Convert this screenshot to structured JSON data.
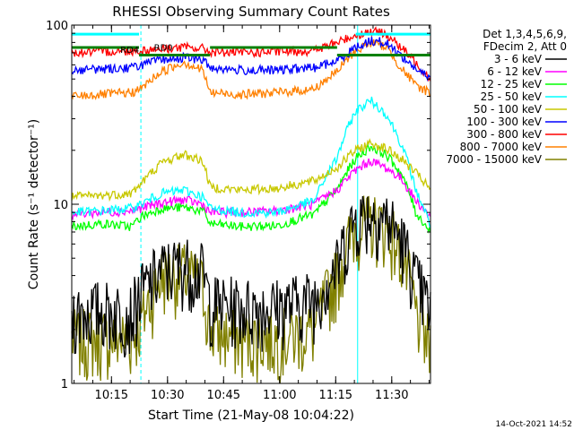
{
  "chart_data": {
    "type": "line",
    "title": "RHESSI Observing Summary Count Rates",
    "xlabel": "Start Time (21-May-08 10:04:22)",
    "ylabel": "Count Rate (s⁻¹ detector⁻¹)",
    "footer": "14-Oct-2021 14:52",
    "legend_header": [
      "Det 1,3,4,5,6,9,",
      "FDecim 2, Att 0"
    ],
    "legend_position": "right",
    "x_ticks": [
      "10:15",
      "10:30",
      "10:45",
      "11:00",
      "11:15",
      "11:30"
    ],
    "x_tick_minutes": [
      10.63,
      25.63,
      40.63,
      55.63,
      70.63,
      85.63
    ],
    "xlim_minutes": [
      0,
      96
    ],
    "y_ticks": [
      "1",
      "10",
      "100"
    ],
    "y_scale": "log",
    "ylim": [
      1,
      100
    ],
    "vlines_minutes": [
      18.5,
      76.5,
      96.0
    ],
    "annotations": [
      {
        "text": "RD0",
        "x_min": 22,
        "y": 72
      },
      {
        "text": "RD4",
        "x_min": 13,
        "y": 70
      }
    ],
    "mode_bars": [
      {
        "color": "#008000",
        "y": 75,
        "segments": [
          [
            0,
            18
          ],
          [
            18,
            37
          ],
          [
            37,
            71
          ],
          [
            71,
            78
          ],
          [
            78,
            96
          ]
        ],
        "levels": [
          75,
          68,
          75,
          68,
          68
        ]
      },
      {
        "color": "#00ffff",
        "y": 89,
        "segments": [
          [
            0,
            18
          ],
          [
            76,
            96
          ]
        ],
        "levels": [
          89,
          89
        ]
      }
    ],
    "x": [
      0,
      8,
      16,
      18.5,
      24,
      30,
      35,
      37,
      45,
      55,
      65,
      71,
      76,
      80,
      84,
      88,
      92,
      96
    ],
    "series": [
      {
        "name": "3 - 6 keV",
        "color": "#000000",
        "values": [
          2.5,
          2.6,
          2.5,
          3.2,
          4.3,
          4.6,
          4.2,
          2.8,
          2.7,
          2.7,
          3.0,
          4.5,
          8.5,
          9.0,
          8.5,
          6.5,
          3.8,
          2.5
        ]
      },
      {
        "name": "6 - 12 keV",
        "color": "#ff00ff",
        "values": [
          8.8,
          9.0,
          9.2,
          9.5,
          10.2,
          10.6,
          10.0,
          9.0,
          9.0,
          9.2,
          10.0,
          12.0,
          15.5,
          17.5,
          16.0,
          14.0,
          10.5,
          8.5
        ]
      },
      {
        "name": "12 - 25 keV",
        "color": "#00ff00",
        "values": [
          7.5,
          7.8,
          7.5,
          8.5,
          9.5,
          9.6,
          9.2,
          7.8,
          7.5,
          7.6,
          8.8,
          12.0,
          18.0,
          21.0,
          19.0,
          15.0,
          9.0,
          7.0
        ]
      },
      {
        "name": "25 - 50 keV",
        "color": "#00ffff",
        "values": [
          9.0,
          9.2,
          9.5,
          10.0,
          11.5,
          12.0,
          11.0,
          9.5,
          9.0,
          9.0,
          10.5,
          18.0,
          33.0,
          38.0,
          32.0,
          22.0,
          12.0,
          7.5
        ]
      },
      {
        "name": "50 - 100 keV",
        "color": "#c8c800",
        "values": [
          11.0,
          11.2,
          11.5,
          13.0,
          17.0,
          19.0,
          17.5,
          12.5,
          12.0,
          12.3,
          13.5,
          16.0,
          20.0,
          22.0,
          20.5,
          18.0,
          15.0,
          12.0
        ]
      },
      {
        "name": "100 - 300 keV",
        "color": "#0000ff",
        "values": [
          56,
          57,
          58,
          60,
          64,
          66,
          64,
          58,
          56,
          56,
          58,
          63,
          75,
          82,
          80,
          68,
          57,
          50
        ]
      },
      {
        "name": "300 - 800 keV",
        "color": "#ff0000",
        "values": [
          70,
          71,
          72,
          72,
          74,
          75,
          74,
          71,
          70,
          71,
          72,
          80,
          88,
          92,
          90,
          75,
          62,
          50
        ]
      },
      {
        "name": "800 - 7000 keV",
        "color": "#ff8000",
        "values": [
          40,
          41,
          42,
          44,
          55,
          62,
          56,
          42,
          41,
          42,
          44,
          55,
          72,
          80,
          76,
          58,
          46,
          42
        ]
      },
      {
        "name": "7000 - 15000 keV",
        "color": "#808000",
        "values": [
          1.8,
          1.8,
          1.8,
          2.2,
          4.0,
          4.2,
          3.5,
          2.0,
          1.8,
          1.8,
          2.0,
          4.0,
          7.5,
          8.0,
          7.5,
          5.5,
          2.5,
          1.5
        ]
      }
    ]
  }
}
